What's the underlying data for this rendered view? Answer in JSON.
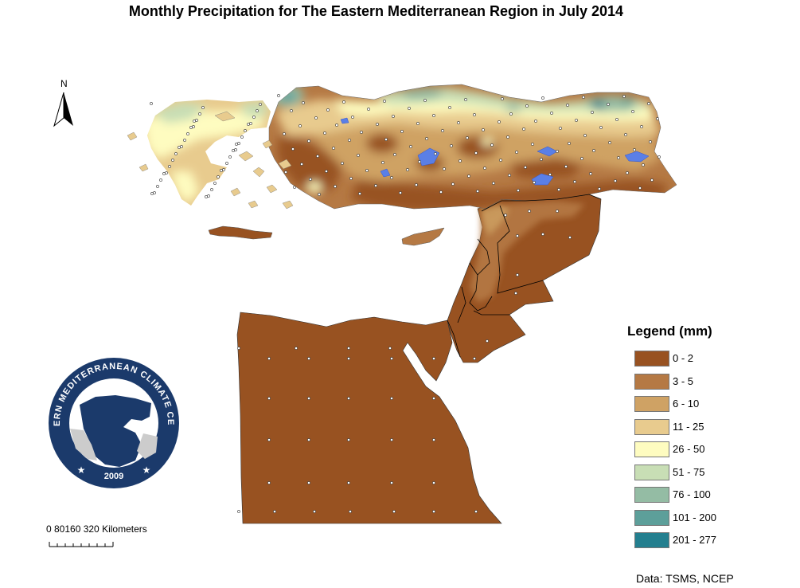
{
  "title": "Monthly Precipitation  for The Eastern Mediterranean Region in July 2014",
  "north_arrow": {
    "label": "N",
    "icon": "north-arrow-icon"
  },
  "legend": {
    "title": "Legend (mm)",
    "items": [
      {
        "label": "0 - 2",
        "color": "#985221"
      },
      {
        "label": "3 - 5",
        "color": "#b57944"
      },
      {
        "label": "6 - 10",
        "color": "#cfa264"
      },
      {
        "label": "11 - 25",
        "color": "#e8cb8e"
      },
      {
        "label": "26 - 50",
        "color": "#fefcc0"
      },
      {
        "label": "51 - 75",
        "color": "#c8deb5"
      },
      {
        "label": "76 - 100",
        "color": "#94bca4"
      },
      {
        "label": "101 - 200",
        "color": "#5d9f9a"
      },
      {
        "label": "201 - 277",
        "color": "#237f8f"
      }
    ]
  },
  "scale_bar": {
    "label": "0  80160   320 Kilometers"
  },
  "logo": {
    "ring_text": "EASTERN MEDITERRANEAN CLIMATE CENTRE",
    "year": "2009",
    "ring_color": "#1b3a6b"
  },
  "source": "Data: TSMS, NCEP",
  "colors": {
    "sea": "#ffffff",
    "border": "#000000",
    "lake": "#5a7fe6"
  }
}
